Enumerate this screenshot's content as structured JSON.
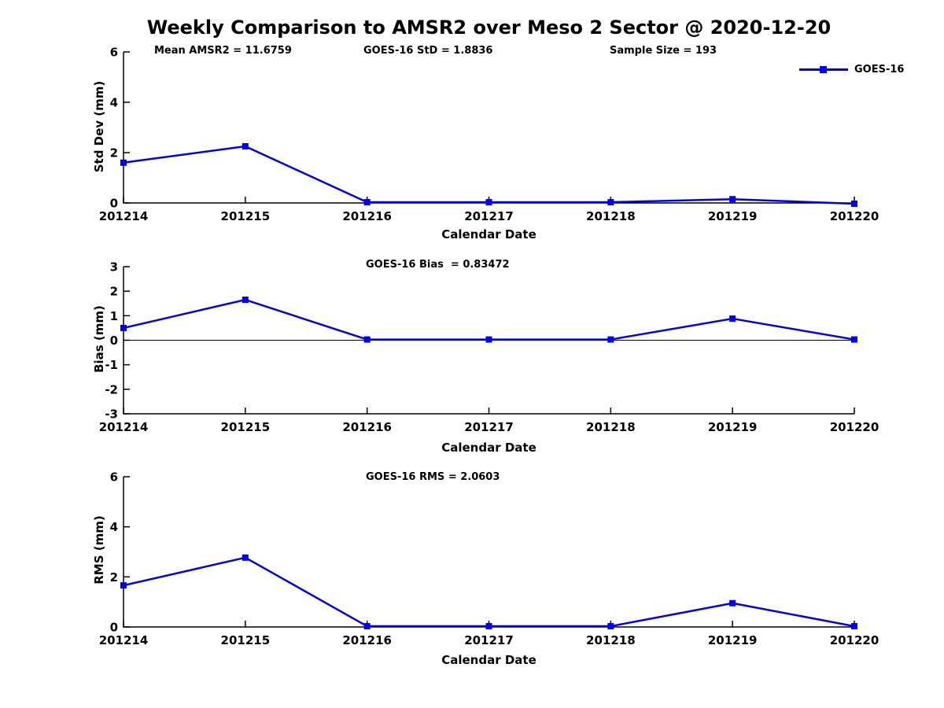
{
  "page": {
    "title": "Weekly Comparison to AMSR2 over Meso 2 Sector @ 2020-12-20"
  },
  "legend": {
    "label": "GOES-16"
  },
  "colors": {
    "series": "#0000f0",
    "axis": "#000000"
  },
  "chart_data": [
    {
      "type": "line",
      "name": "std-dev-panel",
      "annotations": [
        "Mean AMSR2 = 11.6759",
        "GOES-16 StD = 1.8836",
        "Sample Size = 193"
      ],
      "categories": [
        "201214",
        "201215",
        "201216",
        "201217",
        "201218",
        "201219",
        "201220"
      ],
      "series": [
        {
          "name": "GOES-16",
          "values": [
            1.6,
            2.25,
            0.03,
            0.03,
            0.03,
            0.15,
            -0.03
          ]
        }
      ],
      "xlabel": "Calendar Date",
      "ylabel": "Std Dev (mm)",
      "ylim": [
        0,
        6
      ],
      "yticks": [
        0,
        2,
        4,
        6
      ],
      "zero_line": false,
      "legend_position": "top-right",
      "grid": false
    },
    {
      "type": "line",
      "name": "bias-panel",
      "annotations": [
        "GOES-16 Bias  = 0.83472"
      ],
      "categories": [
        "201214",
        "201215",
        "201216",
        "201217",
        "201218",
        "201219",
        "201220"
      ],
      "series": [
        {
          "name": "GOES-16",
          "values": [
            0.5,
            1.65,
            0.03,
            0.03,
            0.03,
            0.88,
            0.03
          ]
        }
      ],
      "xlabel": "Calendar Date",
      "ylabel": "Bias (mm)",
      "ylim": [
        -3,
        3
      ],
      "yticks": [
        3,
        2,
        1,
        0,
        -1,
        -2,
        -3
      ],
      "zero_line": true,
      "grid": false
    },
    {
      "type": "line",
      "name": "rms-panel",
      "annotations": [
        "GOES-16 RMS = 2.0603"
      ],
      "categories": [
        "201214",
        "201215",
        "201216",
        "201217",
        "201218",
        "201219",
        "201220"
      ],
      "series": [
        {
          "name": "GOES-16",
          "values": [
            1.66,
            2.77,
            0.03,
            0.03,
            0.03,
            0.95,
            0.03
          ]
        }
      ],
      "xlabel": "Calendar Date",
      "ylabel": "RMS (mm)",
      "ylim": [
        0,
        6
      ],
      "yticks": [
        0,
        2,
        4,
        6
      ],
      "zero_line": false,
      "grid": false
    }
  ]
}
